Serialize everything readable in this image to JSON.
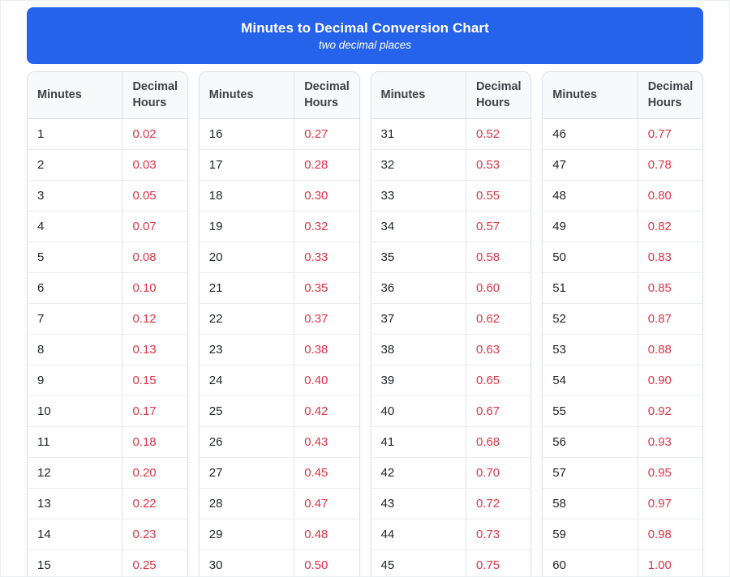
{
  "colors": {
    "header_bg": "#2563eb",
    "header_text": "#ffffff",
    "column_header_bg": "#f8f9fa",
    "column_header_text": "#3d434a",
    "table_border": "#dee2e6",
    "row_divider": "#e9ecef",
    "minutes_value": "#1f2327",
    "decimal_value": "#dc3545"
  },
  "chart_data": {
    "type": "table",
    "title": "Minutes to Decimal Conversion Chart",
    "subtitle": "two decimal places",
    "columns": [
      "Minutes",
      "Decimal Hours"
    ],
    "tables": [
      {
        "rows": [
          {
            "minutes": "1",
            "decimal": "0.02"
          },
          {
            "minutes": "2",
            "decimal": "0.03"
          },
          {
            "minutes": "3",
            "decimal": "0.05"
          },
          {
            "minutes": "4",
            "decimal": "0.07"
          },
          {
            "minutes": "5",
            "decimal": "0.08"
          },
          {
            "minutes": "6",
            "decimal": "0.10"
          },
          {
            "minutes": "7",
            "decimal": "0.12"
          },
          {
            "minutes": "8",
            "decimal": "0.13"
          },
          {
            "minutes": "9",
            "decimal": "0.15"
          },
          {
            "minutes": "10",
            "decimal": "0.17"
          },
          {
            "minutes": "11",
            "decimal": "0.18"
          },
          {
            "minutes": "12",
            "decimal": "0.20"
          },
          {
            "minutes": "13",
            "decimal": "0.22"
          },
          {
            "minutes": "14",
            "decimal": "0.23"
          },
          {
            "minutes": "15",
            "decimal": "0.25"
          }
        ]
      },
      {
        "rows": [
          {
            "minutes": "16",
            "decimal": "0.27"
          },
          {
            "minutes": "17",
            "decimal": "0.28"
          },
          {
            "minutes": "18",
            "decimal": "0.30"
          },
          {
            "minutes": "19",
            "decimal": "0.32"
          },
          {
            "minutes": "20",
            "decimal": "0.33"
          },
          {
            "minutes": "21",
            "decimal": "0.35"
          },
          {
            "minutes": "22",
            "decimal": "0.37"
          },
          {
            "minutes": "23",
            "decimal": "0.38"
          },
          {
            "minutes": "24",
            "decimal": "0.40"
          },
          {
            "minutes": "25",
            "decimal": "0.42"
          },
          {
            "minutes": "26",
            "decimal": "0.43"
          },
          {
            "minutes": "27",
            "decimal": "0.45"
          },
          {
            "minutes": "28",
            "decimal": "0.47"
          },
          {
            "minutes": "29",
            "decimal": "0.48"
          },
          {
            "minutes": "30",
            "decimal": "0.50"
          }
        ]
      },
      {
        "rows": [
          {
            "minutes": "31",
            "decimal": "0.52"
          },
          {
            "minutes": "32",
            "decimal": "0.53"
          },
          {
            "minutes": "33",
            "decimal": "0.55"
          },
          {
            "minutes": "34",
            "decimal": "0.57"
          },
          {
            "minutes": "35",
            "decimal": "0.58"
          },
          {
            "minutes": "36",
            "decimal": "0.60"
          },
          {
            "minutes": "37",
            "decimal": "0.62"
          },
          {
            "minutes": "38",
            "decimal": "0.63"
          },
          {
            "minutes": "39",
            "decimal": "0.65"
          },
          {
            "minutes": "40",
            "decimal": "0.67"
          },
          {
            "minutes": "41",
            "decimal": "0.68"
          },
          {
            "minutes": "42",
            "decimal": "0.70"
          },
          {
            "minutes": "43",
            "decimal": "0.72"
          },
          {
            "minutes": "44",
            "decimal": "0.73"
          },
          {
            "minutes": "45",
            "decimal": "0.75"
          }
        ]
      },
      {
        "rows": [
          {
            "minutes": "46",
            "decimal": "0.77"
          },
          {
            "minutes": "47",
            "decimal": "0.78"
          },
          {
            "minutes": "48",
            "decimal": "0.80"
          },
          {
            "minutes": "49",
            "decimal": "0.82"
          },
          {
            "minutes": "50",
            "decimal": "0.83"
          },
          {
            "minutes": "51",
            "decimal": "0.85"
          },
          {
            "minutes": "52",
            "decimal": "0.87"
          },
          {
            "minutes": "53",
            "decimal": "0.88"
          },
          {
            "minutes": "54",
            "decimal": "0.90"
          },
          {
            "minutes": "55",
            "decimal": "0.92"
          },
          {
            "minutes": "56",
            "decimal": "0.93"
          },
          {
            "minutes": "57",
            "decimal": "0.95"
          },
          {
            "minutes": "58",
            "decimal": "0.97"
          },
          {
            "minutes": "59",
            "decimal": "0.98"
          },
          {
            "minutes": "60",
            "decimal": "1.00"
          }
        ]
      }
    ]
  }
}
